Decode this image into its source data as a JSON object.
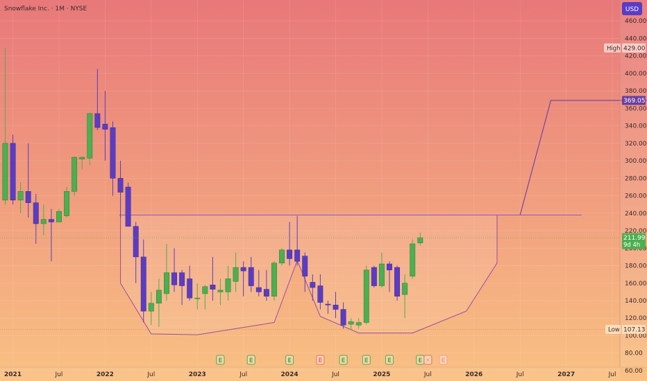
{
  "header": {
    "title": "Snowflake Inc. · 1M · NYSE",
    "currency_button": "USD"
  },
  "colors": {
    "bg_top": "#e8787a",
    "bg_bottom": "#f9c183",
    "up": "#4caf50",
    "down": "#5b3cc4",
    "pattern_line": "#9b4d9e",
    "neckline": "#8a5ad0",
    "price_badge": "#4caf50",
    "target_line": "#6b3f9e"
  },
  "markers": {
    "high_label": "High",
    "high_value": "429.00",
    "low_label": "Low",
    "low_value": "107.13",
    "last_price": "211.99",
    "countdown": "9d 4h",
    "target_value": "369.05"
  },
  "events": [
    {
      "x": "2023-04",
      "type": "E",
      "color": "#4caf50"
    },
    {
      "x": "2023-08",
      "type": "E",
      "color": "#4caf50"
    },
    {
      "x": "2024-01",
      "type": "E",
      "color": "#4caf50"
    },
    {
      "x": "2024-05",
      "type": "E",
      "color": "#e57373"
    },
    {
      "x": "2024-08",
      "type": "E",
      "color": "#4caf50"
    },
    {
      "x": "2024-11",
      "type": "E",
      "color": "#4caf50"
    },
    {
      "x": "2025-02",
      "type": "E",
      "color": "#4caf50"
    },
    {
      "x": "2025-06",
      "type": "E",
      "color": "#4caf50"
    },
    {
      "x": "2025-07",
      "type": "⚡",
      "color": "#e57373"
    },
    {
      "x": "2025-09",
      "type": "E",
      "color": "#f0a0a0"
    }
  ],
  "chart_data": {
    "type": "candlestick",
    "title": "Snowflake Inc. · 1M · NYSE",
    "yaxis": "right",
    "ylim": [
      56,
      476
    ],
    "yticks": [
      "60.00",
      "80.00",
      "100.00",
      "120.00",
      "140.00",
      "160.00",
      "180.00",
      "200.00",
      "220.00",
      "240.00",
      "260.00",
      "280.00",
      "300.00",
      "320.00",
      "340.00",
      "360.00",
      "380.00",
      "400.00",
      "420.00",
      "440.00",
      "460.00"
    ],
    "xticks": [
      {
        "label": "2021",
        "x": "2021-01",
        "year": true
      },
      {
        "label": "Jul",
        "x": "2021-07",
        "year": false
      },
      {
        "label": "2022",
        "x": "2022-01",
        "year": true
      },
      {
        "label": "Jul",
        "x": "2022-07",
        "year": false
      },
      {
        "label": "2023",
        "x": "2023-01",
        "year": true
      },
      {
        "label": "Jul",
        "x": "2023-07",
        "year": false
      },
      {
        "label": "2024",
        "x": "2024-01",
        "year": true
      },
      {
        "label": "Jul",
        "x": "2024-07",
        "year": false
      },
      {
        "label": "2025",
        "x": "2025-01",
        "year": true
      },
      {
        "label": "Jul",
        "x": "2025-07",
        "year": false
      },
      {
        "label": "2026",
        "x": "2026-01",
        "year": true
      },
      {
        "label": "Jul",
        "x": "2026-07",
        "year": false
      },
      {
        "label": "2027",
        "x": "2027-01",
        "year": true
      },
      {
        "label": "Jul",
        "x": "2027-07",
        "year": false
      }
    ],
    "candles": [
      {
        "x": "2020-12",
        "o": 255,
        "h": 429,
        "l": 250,
        "c": 320
      },
      {
        "x": "2021-01",
        "o": 320,
        "h": 330,
        "l": 250,
        "c": 255
      },
      {
        "x": "2021-02",
        "o": 255,
        "h": 275,
        "l": 240,
        "c": 265
      },
      {
        "x": "2021-03",
        "o": 265,
        "h": 320,
        "l": 235,
        "c": 252
      },
      {
        "x": "2021-04",
        "o": 252,
        "h": 262,
        "l": 205,
        "c": 228
      },
      {
        "x": "2021-05",
        "o": 228,
        "h": 250,
        "l": 215,
        "c": 233
      },
      {
        "x": "2021-06",
        "o": 233,
        "h": 245,
        "l": 185,
        "c": 230
      },
      {
        "x": "2021-07",
        "o": 230,
        "h": 245,
        "l": 230,
        "c": 242
      },
      {
        "x": "2021-08",
        "o": 237,
        "h": 270,
        "l": 235,
        "c": 265
      },
      {
        "x": "2021-09",
        "o": 265,
        "h": 305,
        "l": 260,
        "c": 304
      },
      {
        "x": "2021-10",
        "o": 302,
        "h": 305,
        "l": 290,
        "c": 304
      },
      {
        "x": "2021-11",
        "o": 303,
        "h": 355,
        "l": 295,
        "c": 354
      },
      {
        "x": "2021-12",
        "o": 354,
        "h": 405,
        "l": 335,
        "c": 338
      },
      {
        "x": "2022-01",
        "o": 342,
        "h": 380,
        "l": 300,
        "c": 336
      },
      {
        "x": "2022-02",
        "o": 338,
        "h": 345,
        "l": 260,
        "c": 280
      },
      {
        "x": "2022-03",
        "o": 280,
        "h": 300,
        "l": 235,
        "c": 264
      },
      {
        "x": "2022-04",
        "o": 270,
        "h": 275,
        "l": 225,
        "c": 225
      },
      {
        "x": "2022-05",
        "o": 225,
        "h": 230,
        "l": 160,
        "c": 190
      },
      {
        "x": "2022-06",
        "o": 190,
        "h": 210,
        "l": 115,
        "c": 128
      },
      {
        "x": "2022-07",
        "o": 128,
        "h": 150,
        "l": 112,
        "c": 137
      },
      {
        "x": "2022-08",
        "o": 137,
        "h": 165,
        "l": 110,
        "c": 152
      },
      {
        "x": "2022-09",
        "o": 148,
        "h": 205,
        "l": 140,
        "c": 172
      },
      {
        "x": "2022-10",
        "o": 172,
        "h": 200,
        "l": 150,
        "c": 158
      },
      {
        "x": "2022-11",
        "o": 172,
        "h": 175,
        "l": 135,
        "c": 157
      },
      {
        "x": "2022-12",
        "o": 165,
        "h": 180,
        "l": 140,
        "c": 143
      },
      {
        "x": "2023-01",
        "o": 143,
        "h": 160,
        "l": 130,
        "c": 143
      },
      {
        "x": "2023-02",
        "o": 148,
        "h": 158,
        "l": 130,
        "c": 156
      },
      {
        "x": "2023-03",
        "o": 158,
        "h": 190,
        "l": 140,
        "c": 153
      },
      {
        "x": "2023-04",
        "o": 150,
        "h": 165,
        "l": 135,
        "c": 152
      },
      {
        "x": "2023-05",
        "o": 150,
        "h": 180,
        "l": 140,
        "c": 165
      },
      {
        "x": "2023-06",
        "o": 162,
        "h": 195,
        "l": 150,
        "c": 178
      },
      {
        "x": "2023-07",
        "o": 178,
        "h": 185,
        "l": 145,
        "c": 174
      },
      {
        "x": "2023-08",
        "o": 178,
        "h": 190,
        "l": 150,
        "c": 157
      },
      {
        "x": "2023-09",
        "o": 155,
        "h": 175,
        "l": 145,
        "c": 150
      },
      {
        "x": "2023-10",
        "o": 153,
        "h": 175,
        "l": 140,
        "c": 145
      },
      {
        "x": "2023-11",
        "o": 145,
        "h": 185,
        "l": 140,
        "c": 183
      },
      {
        "x": "2023-12",
        "o": 183,
        "h": 200,
        "l": 180,
        "c": 198
      },
      {
        "x": "2024-01",
        "o": 198,
        "h": 230,
        "l": 180,
        "c": 188
      },
      {
        "x": "2024-02",
        "o": 198,
        "h": 237,
        "l": 180,
        "c": 185
      },
      {
        "x": "2024-03",
        "o": 191,
        "h": 195,
        "l": 150,
        "c": 168
      },
      {
        "x": "2024-04",
        "o": 161,
        "h": 170,
        "l": 140,
        "c": 155
      },
      {
        "x": "2024-05",
        "o": 157,
        "h": 170,
        "l": 130,
        "c": 138
      },
      {
        "x": "2024-06",
        "o": 136,
        "h": 140,
        "l": 125,
        "c": 135
      },
      {
        "x": "2024-07",
        "o": 135,
        "h": 150,
        "l": 120,
        "c": 130
      },
      {
        "x": "2024-08",
        "o": 130,
        "h": 138,
        "l": 108,
        "c": 112
      },
      {
        "x": "2024-09",
        "o": 113,
        "h": 120,
        "l": 107,
        "c": 116
      },
      {
        "x": "2024-10",
        "o": 112,
        "h": 120,
        "l": 108,
        "c": 115
      },
      {
        "x": "2024-11",
        "o": 115,
        "h": 180,
        "l": 113,
        "c": 175
      },
      {
        "x": "2024-12",
        "o": 178,
        "h": 180,
        "l": 155,
        "c": 157
      },
      {
        "x": "2025-01",
        "o": 157,
        "h": 195,
        "l": 155,
        "c": 182
      },
      {
        "x": "2025-02",
        "o": 182,
        "h": 185,
        "l": 150,
        "c": 175
      },
      {
        "x": "2025-03",
        "o": 178,
        "h": 180,
        "l": 140,
        "c": 145
      },
      {
        "x": "2025-04",
        "o": 147,
        "h": 170,
        "l": 120,
        "c": 160
      },
      {
        "x": "2025-05",
        "o": 168,
        "h": 210,
        "l": 165,
        "c": 205
      },
      {
        "x": "2025-06",
        "o": 206,
        "h": 218,
        "l": 203,
        "c": 212
      }
    ],
    "cup_handle_outline": [
      {
        "x": "2022-03",
        "y": 237
      },
      {
        "x": "2022-03",
        "y": 160
      },
      {
        "x": "2022-07",
        "y": 102
      },
      {
        "x": "2023-01",
        "y": 101
      },
      {
        "x": "2023-11",
        "y": 115
      },
      {
        "x": "2024-02",
        "y": 186
      },
      {
        "x": "2024-05",
        "y": 122
      },
      {
        "x": "2024-10",
        "y": 103
      },
      {
        "x": "2025-05",
        "y": 103
      },
      {
        "x": "2025-12",
        "y": 128
      },
      {
        "x": "2026-04",
        "y": 183
      },
      {
        "x": "2026-04",
        "y": 238
      }
    ],
    "neckline": {
      "y": 238,
      "from": "2022-03",
      "to": "2027-03"
    },
    "target_path": [
      {
        "x": "2026-07",
        "y": 238
      },
      {
        "x": "2026-11",
        "y": 369.05
      },
      {
        "x": "2027-12",
        "y": 369.05
      }
    ],
    "reference_levels": {
      "high": 429.0,
      "low": 107.13,
      "last": 211.99
    }
  }
}
